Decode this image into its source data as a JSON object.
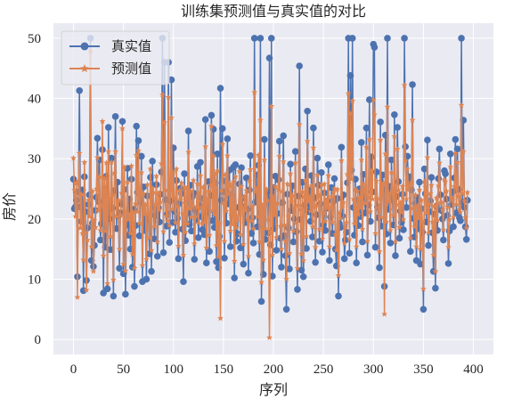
{
  "chart_data": {
    "type": "line",
    "title": "训练集预测值与真实值的对比",
    "xlabel": "序列",
    "ylabel": "房价",
    "xlim": [
      -20,
      420
    ],
    "ylim": [
      -2.5,
      52.5
    ],
    "xticks": [
      0,
      50,
      100,
      150,
      200,
      250,
      300,
      350,
      400
    ],
    "xtick_labels": [
      "0",
      "50",
      "100",
      "150",
      "200",
      "250",
      "300",
      "350",
      "400"
    ],
    "yticks": [
      0,
      10,
      20,
      30,
      40,
      50
    ],
    "ytick_labels": [
      "0",
      "10",
      "20",
      "30",
      "40",
      "50"
    ],
    "grid": true,
    "legend_position": "top-left",
    "n_points": 404,
    "series": [
      {
        "name": "真实值",
        "color": "#4c72b0",
        "marker": "circle",
        "values": [
          26.6,
          21.7,
          22.0,
          23.1,
          10.4,
          24.5,
          41.3,
          22.0,
          19.6,
          24.8,
          8.1,
          27.0,
          21.2,
          9.8,
          18.5,
          22.4,
          24.0,
          50.0,
          13.1,
          19.3,
          12.1,
          15.6,
          21.4,
          23.6,
          33.4,
          22.9,
          29.8,
          16.5,
          19.2,
          31.5,
          7.7,
          25.0,
          15.3,
          27.1,
          8.4,
          35.2,
          20.0,
          14.9,
          30.1,
          21.8,
          7.2,
          24.7,
          37.0,
          18.4,
          26.1,
          20.5,
          11.8,
          21.0,
          22.5,
          36.2,
          10.9,
          24.9,
          7.5,
          19.0,
          28.4,
          17.3,
          23.3,
          15.0,
          26.6,
          12.0,
          21.6,
          8.8,
          18.9,
          35.4,
          24.4,
          33.0,
          17.2,
          22.8,
          30.4,
          9.6,
          25.3,
          18.1,
          19.9,
          10.0,
          23.8,
          20.3,
          14.2,
          26.9,
          11.3,
          29.6,
          22.1,
          16.7,
          20.6,
          25.7,
          13.8,
          21.9,
          19.5,
          24.1,
          27.8,
          50.0,
          14.4,
          46.0,
          23.2,
          18.8,
          20.8,
          46.0,
          16.1,
          23.0,
          43.1,
          19.4,
          31.8,
          21.3,
          17.8,
          26.4,
          20.1,
          13.4,
          22.6,
          25.1,
          24.2,
          18.3,
          9.6,
          27.5,
          16.4,
          22.7,
          20.9,
          34.6,
          19.1,
          25.6,
          18.0,
          23.7,
          24.3,
          13.3,
          21.5,
          19.8,
          28.7,
          16.9,
          22.3,
          29.4,
          20.4,
          18.2,
          23.4,
          17.4,
          36.5,
          12.7,
          21.1,
          26.2,
          14.6,
          23.9,
          37.2,
          19.7,
          34.9,
          18.6,
          26.0,
          12.9,
          30.8,
          11.9,
          17.1,
          41.7,
          23.1,
          35.0,
          24.5,
          13.5,
          26.3,
          19.3,
          33.3,
          22.5,
          28.1,
          15.4,
          24.0,
          20.7,
          28.6,
          10.2,
          29.0,
          16.3,
          17.5,
          21.9,
          25.8,
          15.2,
          28.5,
          23.5,
          12.5,
          22.0,
          19.4,
          26.8,
          21.6,
          11.0,
          24.8,
          30.5,
          17.6,
          20.2,
          16.0,
          50.0,
          22.8,
          27.3,
          18.7,
          28.9,
          14.1,
          50.0,
          6.3,
          20.5,
          10.8,
          33.2,
          16.6,
          23.3,
          24.6,
          17.7,
          46.7,
          15.7,
          50.0,
          10.5,
          25.2,
          18.4,
          27.1,
          14.8,
          20.9,
          26.5,
          32.9,
          16.8,
          12.0,
          22.7,
          33.8,
          17.2,
          13.9,
          5.0,
          24.1,
          18.5,
          11.7,
          29.1,
          21.4,
          25.5,
          16.2,
          20.0,
          31.2,
          17.9,
          8.3,
          23.8,
          45.4,
          19.9,
          11.5,
          26.1,
          10.4,
          22.2,
          28.3,
          15.1,
          37.9,
          21.2,
          24.8,
          19.6,
          27.2,
          17.0,
          35.1,
          23.5,
          12.8,
          20.7,
          30.1,
          25.6,
          16.3,
          22.5,
          27.7,
          14.5,
          19.0,
          24.3,
          18.1,
          21.8,
          23.0,
          29.0,
          13.1,
          20.3,
          25.2,
          17.6,
          22.9,
          26.7,
          15.0,
          12.2,
          23.4,
          7.2,
          19.2,
          18.6,
          31.9,
          20.5,
          24.0,
          13.4,
          16.5,
          17.8,
          26.0,
          50.0,
          14.3,
          43.8,
          28.1,
          50.0,
          21.9,
          17.3,
          26.6,
          12.7,
          23.1,
          18.9,
          25.0,
          20.4,
          32.7,
          16.2,
          27.4,
          23.6,
          21.0,
          35.1,
          14.0,
          22.3,
          39.8,
          19.6,
          30.3,
          24.5,
          49.0,
          48.5,
          15.3,
          27.8,
          22.0,
          20.2,
          11.9,
          36.1,
          18.8,
          27.3,
          24.9,
          8.8,
          33.9,
          17.5,
          50.0,
          21.6,
          25.4,
          16.0,
          29.8,
          23.2,
          19.0,
          37.3,
          13.9,
          23.7,
          35.2,
          26.2,
          16.8,
          21.3,
          19.4,
          24.1,
          18.2,
          50.0,
          32.0,
          21.9,
          30.4,
          26.4,
          27.0,
          14.6,
          24.8,
          42.3,
          20.1,
          17.0,
          22.6,
          13.1,
          23.5,
          18.4,
          26.1,
          12.5,
          21.7,
          17.8,
          5.0,
          28.3,
          24.2,
          19.5,
          33.1,
          15.6,
          21.2,
          23.0,
          26.9,
          17.7,
          11.3,
          20.8,
          8.5,
          22.1,
          18.1,
          26.7,
          31.6,
          24.0,
          21.4,
          20.0,
          16.5,
          28.0,
          27.5,
          23.3,
          20.6,
          12.6,
          18.0,
          30.8,
          22.4,
          24.5,
          18.7,
          26.8,
          33.2,
          21.0,
          31.6,
          24.9,
          20.2,
          19.7,
          50.0,
          22.8,
          36.4,
          21.9,
          18.7,
          16.6,
          23.1
        ],
        "source_note": ""
      },
      {
        "name": "预测值",
        "color": "#dd8452",
        "marker": "star",
        "values": [
          30.1,
          24.8,
          20.4,
          25.9,
          7.0,
          26.3,
          30.9,
          18.5,
          24.1,
          17.6,
          13.2,
          29.4,
          17.8,
          8.2,
          16.5,
          23.1,
          20.4,
          47.8,
          15.4,
          24.6,
          11.3,
          19.8,
          18.6,
          25.0,
          30.2,
          21.4,
          27.0,
          18.1,
          22.3,
          36.2,
          13.9,
          26.7,
          18.0,
          29.3,
          9.3,
          31.2,
          23.4,
          17.1,
          29.4,
          24.0,
          9.9,
          27.6,
          31.2,
          20.4,
          22.7,
          23.1,
          15.0,
          20.7,
          24.3,
          35.0,
          12.5,
          28.6,
          11.4,
          21.2,
          26.1,
          19.9,
          20.7,
          17.6,
          28.8,
          14.1,
          21.1,
          11.8,
          22.5,
          30.6,
          21.2,
          31.3,
          19.3,
          24.7,
          27.7,
          12.3,
          24.2,
          20.8,
          22.4,
          13.3,
          25.7,
          20.8,
          16.9,
          28.3,
          14.8,
          25.1,
          24.4,
          18.7,
          22.4,
          27.1,
          16.2,
          24.3,
          21.5,
          22.8,
          29.2,
          40.6,
          17.9,
          36.0,
          24.8,
          20.5,
          19.7,
          40.2,
          18.9,
          24.8,
          36.8,
          21.6,
          27.7,
          23.6,
          19.4,
          28.3,
          22.1,
          15.5,
          24.7,
          23.2,
          26.0,
          20.9,
          14.0,
          25.3,
          17.8,
          25.1,
          19.2,
          31.1,
          21.7,
          24.6,
          20.3,
          22.1,
          26.4,
          15.9,
          20.4,
          22.0,
          25.8,
          19.3,
          24.3,
          27.2,
          21.9,
          19.1,
          25.3,
          19.5,
          32.0,
          15.2,
          23.3,
          24.6,
          17.3,
          25.6,
          35.4,
          21.4,
          30.5,
          20.7,
          27.5,
          15.6,
          28.0,
          13.7,
          19.3,
          3.5,
          24.7,
          32.4,
          22.7,
          16.3,
          27.4,
          21.3,
          30.5,
          24.1,
          25.9,
          18.0,
          25.5,
          19.1,
          26.2,
          13.0,
          27.0,
          18.5,
          19.9,
          20.6,
          27.9,
          17.4,
          25.4,
          21.9,
          15.8,
          23.7,
          21.4,
          24.7,
          20.0,
          13.8,
          26.3,
          28.2,
          19.7,
          22.0,
          18.4,
          41.0,
          24.5,
          25.0,
          20.4,
          30.6,
          16.2,
          36.4,
          9.5,
          22.3,
          13.2,
          29.8,
          18.4,
          24.9,
          23.1,
          19.9,
          0.3,
          17.8,
          38.7,
          14.0,
          23.7,
          20.6,
          25.4,
          16.9,
          22.6,
          24.9,
          30.4,
          18.8,
          15.0,
          24.6,
          29.5,
          19.0,
          16.3,
          10.0,
          25.8,
          20.4,
          14.3,
          27.5,
          22.8,
          23.9,
          18.0,
          21.8,
          29.3,
          19.4,
          11.8,
          22.3,
          35.7,
          21.6,
          14.2,
          24.5,
          13.1,
          23.7,
          26.4,
          17.1,
          32.9,
          22.9,
          23.6,
          21.3,
          25.5,
          18.7,
          31.8,
          22.0,
          15.3,
          22.3,
          27.3,
          24.1,
          18.3,
          23.8,
          25.7,
          16.7,
          21.0,
          25.8,
          19.6,
          23.1,
          21.8,
          27.2,
          15.4,
          21.9,
          23.7,
          19.4,
          24.4,
          25.0,
          17.4,
          14.8,
          24.9,
          10.6,
          21.0,
          20.1,
          29.7,
          21.9,
          22.7,
          15.9,
          18.6,
          19.4,
          27.4,
          40.8,
          16.6,
          37.5,
          26.6,
          39.6,
          23.3,
          19.2,
          24.9,
          15.4,
          24.6,
          20.7,
          23.6,
          21.8,
          29.8,
          18.3,
          25.8,
          24.9,
          22.6,
          31.9,
          16.3,
          23.6,
          33.2,
          21.2,
          28.0,
          23.3,
          39.8,
          37.3,
          17.6,
          26.3,
          23.4,
          21.9,
          14.6,
          33.1,
          20.3,
          25.6,
          26.0,
          4.2,
          30.8,
          19.5,
          38.6,
          22.9,
          24.1,
          18.1,
          27.7,
          24.6,
          20.6,
          33.7,
          16.2,
          22.4,
          31.6,
          24.8,
          18.6,
          22.7,
          21.1,
          25.4,
          19.9,
          42.2,
          29.7,
          23.3,
          28.3,
          24.9,
          25.6,
          16.8,
          26.1,
          36.4,
          21.8,
          18.7,
          24.0,
          15.4,
          22.2,
          20.1,
          24.8,
          15.0,
          23.1,
          19.5,
          8.4,
          26.2,
          25.3,
          21.0,
          30.2,
          17.7,
          22.5,
          24.2,
          25.6,
          19.5,
          14.0,
          22.2,
          11.3,
          23.5,
          19.8,
          25.5,
          29.3,
          22.6,
          22.8,
          21.5,
          18.2,
          26.5,
          26.2,
          24.6,
          22.0,
          15.3,
          19.9,
          28.6,
          23.6,
          23.1,
          20.3,
          25.4,
          30.9,
          22.4,
          29.4,
          23.8,
          21.6,
          21.1,
          38.9,
          24.2,
          31.2,
          23.0,
          20.2,
          18.5,
          24.4
        ],
        "source_note": ""
      }
    ]
  }
}
